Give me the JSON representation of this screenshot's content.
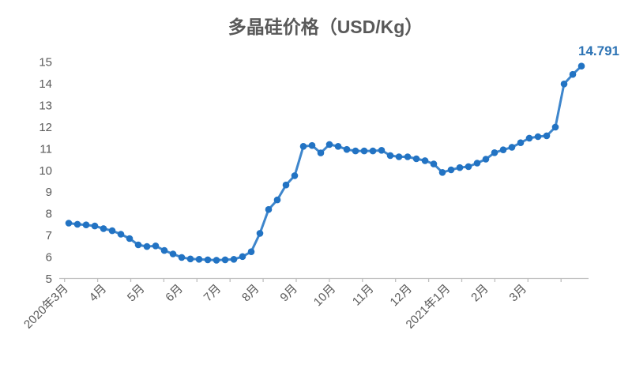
{
  "chart_data": {
    "type": "line",
    "title": "多晶硅价格（USD/Kg）",
    "xlabel": "",
    "ylabel": "",
    "ylim": [
      5,
      15
    ],
    "y_ticks": [
      5,
      6,
      7,
      8,
      9,
      10,
      11,
      12,
      13,
      14,
      15
    ],
    "x_labels": [
      "2020年3月",
      "4月",
      "5月",
      "6月",
      "7月",
      "8月",
      "9月",
      "10月",
      "11月",
      "12月",
      "2021年1月",
      "2月",
      "3月"
    ],
    "grid": "off",
    "legend": "none",
    "series_name": "多晶硅价格",
    "values": [
      7.55,
      7.5,
      7.47,
      7.42,
      7.3,
      7.2,
      7.04,
      6.84,
      6.55,
      6.47,
      6.5,
      6.29,
      6.13,
      5.97,
      5.9,
      5.88,
      5.86,
      5.84,
      5.86,
      5.88,
      6.01,
      6.23,
      7.08,
      8.18,
      8.62,
      9.31,
      9.74,
      11.09,
      11.13,
      10.79,
      11.18,
      11.09,
      10.95,
      10.88,
      10.88,
      10.88,
      10.91,
      10.67,
      10.61,
      10.61,
      10.52,
      10.43,
      10.28,
      9.89,
      10.01,
      10.11,
      10.16,
      10.32,
      10.5,
      10.8,
      10.93,
      11.05,
      11.26,
      11.47,
      11.54,
      11.58,
      11.98,
      13.97,
      14.41,
      14.791
    ],
    "end_label": "14.791",
    "colors": {
      "line": "#3E86CC",
      "marker": "#2273C3",
      "end_label": "#2E74B5",
      "axis": "#BFBFBF",
      "text": "#595959"
    }
  }
}
